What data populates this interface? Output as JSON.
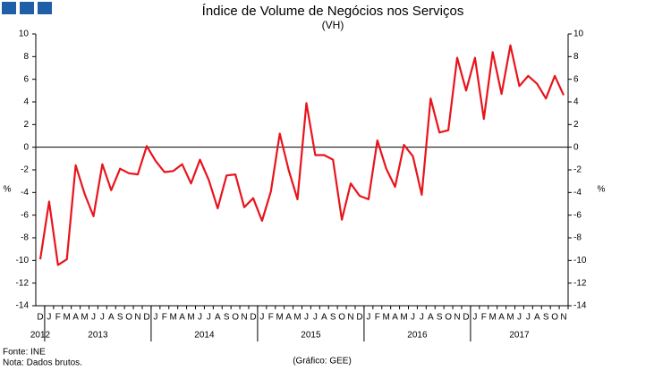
{
  "chart_data": {
    "type": "line",
    "title": "Índice de Volume de Negócios nos Serviços",
    "subtitle": "(VH)",
    "y_label": "%",
    "y2_label": "%",
    "categories": [
      "D",
      "J",
      "F",
      "M",
      "A",
      "M",
      "J",
      "J",
      "A",
      "S",
      "O",
      "N",
      "D",
      "J",
      "F",
      "M",
      "A",
      "M",
      "J",
      "J",
      "A",
      "S",
      "O",
      "N",
      "D",
      "J",
      "F",
      "M",
      "A",
      "M",
      "J",
      "J",
      "A",
      "S",
      "O",
      "N",
      "D",
      "J",
      "F",
      "M",
      "A",
      "M",
      "J",
      "J",
      "A",
      "S",
      "O",
      "N",
      "D",
      "J",
      "F",
      "M",
      "A",
      "M",
      "J",
      "J",
      "A",
      "S",
      "O",
      "N"
    ],
    "year_groups": [
      {
        "label": "2012",
        "count": 1
      },
      {
        "label": "2013",
        "count": 12
      },
      {
        "label": "2014",
        "count": 12
      },
      {
        "label": "2015",
        "count": 12
      },
      {
        "label": "2016",
        "count": 12
      },
      {
        "label": "2017",
        "count": 11
      }
    ],
    "series": [
      {
        "color": "#e8141c",
        "values": [
          -9.9,
          -4.8,
          -10.4,
          -9.9,
          -1.6,
          -4.1,
          -6.1,
          -1.5,
          -3.8,
          -1.9,
          -2.3,
          -2.4,
          0.1,
          -1.2,
          -2.2,
          -2.1,
          -1.5,
          -3.2,
          -1.1,
          -2.9,
          -5.4,
          -2.5,
          -2.4,
          -5.3,
          -4.5,
          -6.5,
          -3.9,
          1.2,
          -2.0,
          -4.6,
          3.9,
          -0.7,
          -0.7,
          -1.1,
          -6.4,
          -3.2,
          -4.3,
          -4.6,
          0.6,
          -1.9,
          -3.5,
          0.2,
          -0.8,
          -4.2,
          4.3,
          1.3,
          1.5,
          7.9,
          5.0,
          7.9,
          2.5,
          8.4,
          4.7,
          9.0,
          5.4,
          6.3,
          5.6,
          4.3,
          6.3,
          4.6
        ]
      }
    ],
    "ylim": [
      -14,
      10
    ],
    "yticks": [
      -14,
      -12,
      -10,
      -8,
      -6,
      -4,
      -2,
      0,
      2,
      4,
      6,
      8,
      10
    ],
    "y2lim": [
      -14,
      10
    ],
    "y2ticks": [
      -14,
      -12,
      -10,
      -8,
      -6,
      -4,
      -2,
      0,
      2,
      4,
      6,
      8,
      10
    ],
    "source": "Fonte: INE",
    "note": "Nota: Dados brutos.",
    "credit": "(Gráfico: GEE)"
  }
}
